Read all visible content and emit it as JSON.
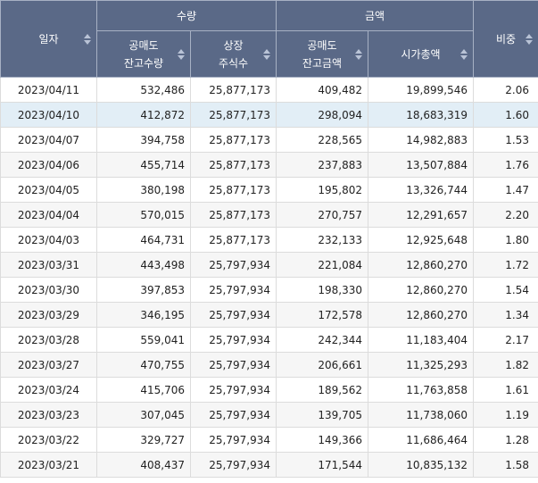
{
  "header": {
    "date_label": "일자",
    "quantity_group": "수량",
    "amount_group": "금액",
    "ratio_label": "비중",
    "short_qty_line1": "공매도",
    "short_qty_line2": "잔고수량",
    "listed_line1": "상장",
    "listed_line2": "주식수",
    "short_amt_line1": "공매도",
    "short_amt_line2": "잔고금액",
    "market_cap": "시가총액"
  },
  "rows": [
    {
      "date": "2023/04/11",
      "short_qty": "532,486",
      "listed": "25,877,173",
      "short_amt": "409,482",
      "market_cap": "19,899,546",
      "ratio": "2.06"
    },
    {
      "date": "2023/04/10",
      "short_qty": "412,872",
      "listed": "25,877,173",
      "short_amt": "298,094",
      "market_cap": "18,683,319",
      "ratio": "1.60"
    },
    {
      "date": "2023/04/07",
      "short_qty": "394,758",
      "listed": "25,877,173",
      "short_amt": "228,565",
      "market_cap": "14,982,883",
      "ratio": "1.53"
    },
    {
      "date": "2023/04/06",
      "short_qty": "455,714",
      "listed": "25,877,173",
      "short_amt": "237,883",
      "market_cap": "13,507,884",
      "ratio": "1.76"
    },
    {
      "date": "2023/04/05",
      "short_qty": "380,198",
      "listed": "25,877,173",
      "short_amt": "195,802",
      "market_cap": "13,326,744",
      "ratio": "1.47"
    },
    {
      "date": "2023/04/04",
      "short_qty": "570,015",
      "listed": "25,877,173",
      "short_amt": "270,757",
      "market_cap": "12,291,657",
      "ratio": "2.20"
    },
    {
      "date": "2023/04/03",
      "short_qty": "464,731",
      "listed": "25,877,173",
      "short_amt": "232,133",
      "market_cap": "12,925,648",
      "ratio": "1.80"
    },
    {
      "date": "2023/03/31",
      "short_qty": "443,498",
      "listed": "25,797,934",
      "short_amt": "221,084",
      "market_cap": "12,860,270",
      "ratio": "1.72"
    },
    {
      "date": "2023/03/30",
      "short_qty": "397,853",
      "listed": "25,797,934",
      "short_amt": "198,330",
      "market_cap": "12,860,270",
      "ratio": "1.54"
    },
    {
      "date": "2023/03/29",
      "short_qty": "346,195",
      "listed": "25,797,934",
      "short_amt": "172,578",
      "market_cap": "12,860,270",
      "ratio": "1.34"
    },
    {
      "date": "2023/03/28",
      "short_qty": "559,041",
      "listed": "25,797,934",
      "short_amt": "242,344",
      "market_cap": "11,183,404",
      "ratio": "2.17"
    },
    {
      "date": "2023/03/27",
      "short_qty": "470,755",
      "listed": "25,797,934",
      "short_amt": "206,661",
      "market_cap": "11,325,293",
      "ratio": "1.82"
    },
    {
      "date": "2023/03/24",
      "short_qty": "415,706",
      "listed": "25,797,934",
      "short_amt": "189,562",
      "market_cap": "11,763,858",
      "ratio": "1.61"
    },
    {
      "date": "2023/03/23",
      "short_qty": "307,045",
      "listed": "25,797,934",
      "short_amt": "139,705",
      "market_cap": "11,738,060",
      "ratio": "1.19"
    },
    {
      "date": "2023/03/22",
      "short_qty": "329,727",
      "listed": "25,797,934",
      "short_amt": "149,366",
      "market_cap": "11,686,464",
      "ratio": "1.28"
    },
    {
      "date": "2023/03/21",
      "short_qty": "408,437",
      "listed": "25,797,934",
      "short_amt": "171,544",
      "market_cap": "10,835,132",
      "ratio": "1.58"
    }
  ],
  "colors": {
    "header_bg": "#5a6987",
    "selected_row_bg": "#e2eef6",
    "alt_row_bg": "#f6f6f6"
  },
  "icons": {
    "sort": "sort-icon"
  }
}
